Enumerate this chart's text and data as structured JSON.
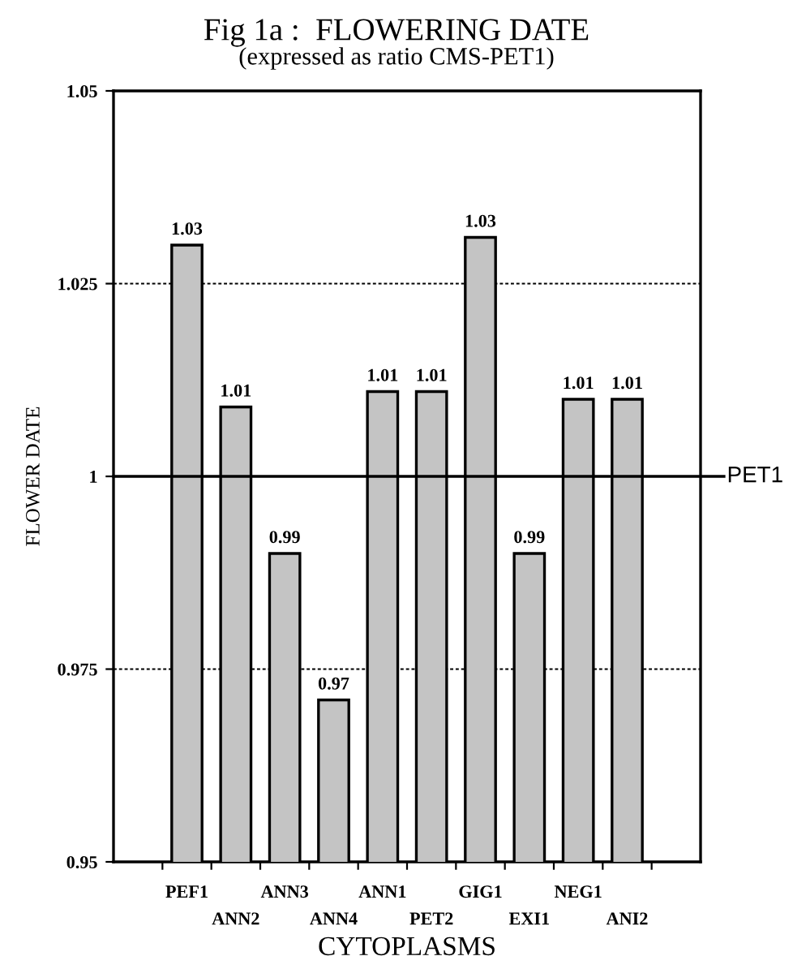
{
  "chart_data": {
    "type": "bar",
    "title": "Fig 1a :  FLOWERING DATE",
    "subtitle": "(expressed as ratio CMS-PET1)",
    "xlabel": "CYTOPLASMS",
    "ylabel": "FLOWER DATE",
    "categories": [
      "PEF1",
      "ANN2",
      "ANN3",
      "ANN4",
      "ANN1",
      "PET2",
      "GIG1",
      "EXI1",
      "NEG1",
      "ANI2"
    ],
    "values": [
      1.03,
      1.009,
      0.99,
      0.971,
      1.011,
      1.011,
      1.031,
      0.99,
      1.01,
      1.01
    ],
    "value_labels": [
      "1.03",
      "1.01",
      "0.99",
      "0.97",
      "1.01",
      "1.01",
      "1.03",
      "0.99",
      "1.01",
      "1.01"
    ],
    "color": "#c4c4c4",
    "ylim": [
      0.95,
      1.05
    ],
    "yticks": [
      0.95,
      0.975,
      1,
      1.025,
      1.05
    ],
    "grid": "y",
    "ref_lines": [
      {
        "axis": "y",
        "value": 1,
        "label": "PET1",
        "color": "#000000",
        "line_style": "solid"
      }
    ]
  }
}
